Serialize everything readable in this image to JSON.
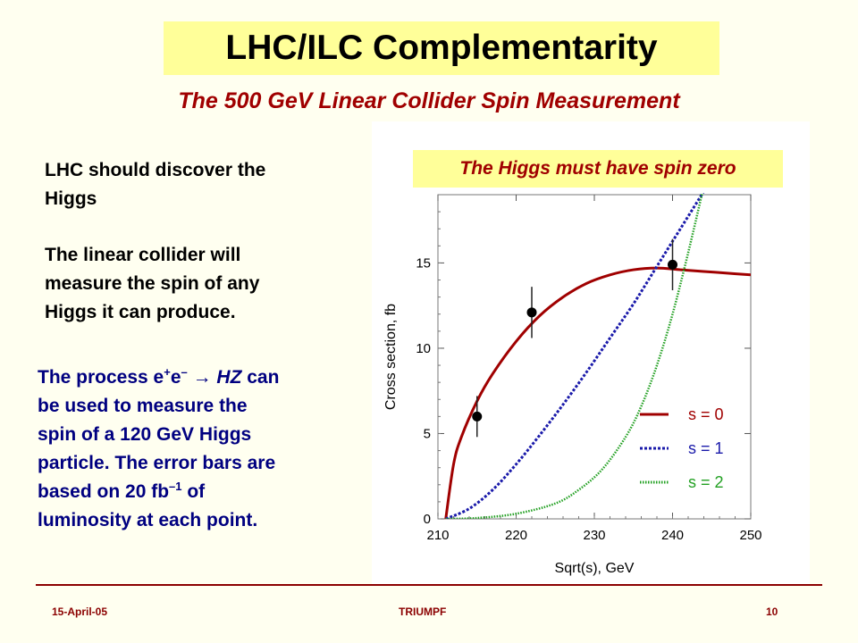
{
  "slide": {
    "title": "LHC/ILC Complementarity",
    "subtitle": "The 500 GeV Linear Collider Spin Measurement",
    "badge": "The Higgs must have spin zero",
    "para1": [
      "LHC should discover the",
      "Higgs"
    ],
    "para2": [
      "The linear collider will",
      "measure the spin of any",
      "Higgs it can produce."
    ],
    "para3": {
      "l1_a": "The process e",
      "l1_sup1": "+",
      "l1_b": "e",
      "l1_sup2": "–",
      "l1_arrow": " → ",
      "l1_hz": "HZ",
      "l1_c": " can",
      "l2": "be used to measure the",
      "l3": "spin of a 120 GeV Higgs",
      "l4": "particle.  The error bars are",
      "l5_a": "based on 20 fb",
      "l5_sup": "–1",
      "l5_b": " of",
      "l6": "luminosity at each point."
    },
    "footer": {
      "date": "15-April-05",
      "center": "TRIUMPF",
      "page": "10"
    }
  },
  "chart_data": {
    "type": "line",
    "xlabel": "Sqrt(s),  GeV",
    "ylabel": "Cross section,  fb",
    "xlim": [
      210,
      250
    ],
    "ylim": [
      0,
      19
    ],
    "x_ticks": [
      210,
      220,
      230,
      240,
      250
    ],
    "y_ticks": [
      0,
      5,
      10,
      15
    ],
    "series": [
      {
        "name": "s = 0",
        "color": "#A00000",
        "style": "solid",
        "x": [
          211,
          212,
          213,
          215,
          217,
          220,
          223,
          226,
          229,
          232,
          235,
          238,
          241,
          244,
          247,
          250
        ],
        "y": [
          0,
          3.2,
          4.8,
          6.9,
          8.5,
          10.4,
          11.9,
          13.0,
          13.8,
          14.3,
          14.6,
          14.7,
          14.6,
          14.5,
          14.4,
          14.3
        ]
      },
      {
        "name": "s = 1",
        "color": "#1A1AAA",
        "style": "dotted",
        "x": [
          211,
          214,
          217,
          220,
          223,
          226,
          229,
          232,
          235,
          238,
          241,
          244
        ],
        "y": [
          0,
          0.6,
          1.7,
          3.2,
          4.9,
          6.7,
          8.6,
          10.6,
          12.6,
          14.8,
          17.0,
          19.2
        ]
      },
      {
        "name": "s = 2",
        "color": "#22A022",
        "style": "dotted",
        "x": [
          211,
          215,
          220,
          225,
          228,
          231,
          234,
          236,
          238,
          240,
          242,
          244
        ],
        "y": [
          0,
          0.05,
          0.3,
          0.9,
          1.7,
          2.9,
          4.8,
          6.6,
          9.0,
          12.0,
          15.6,
          19.5
        ]
      }
    ],
    "points": [
      {
        "x": 215,
        "y": 6.0,
        "err": 1.2
      },
      {
        "x": 222,
        "y": 12.1,
        "err": 1.5
      },
      {
        "x": 240,
        "y": 14.9,
        "err": 1.5
      }
    ],
    "legend_placement": "bottom-right"
  }
}
